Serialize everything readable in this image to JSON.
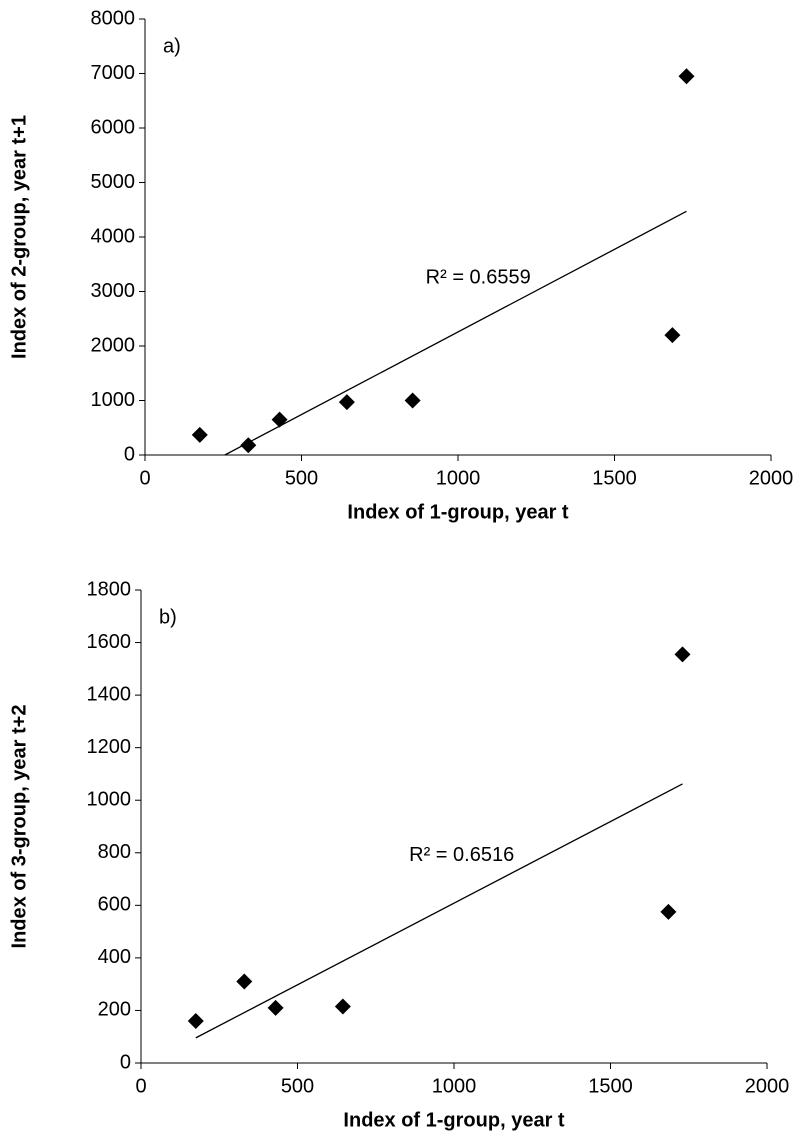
{
  "chart_data": [
    {
      "type": "scatter",
      "panel_label": "a)",
      "x_label": "Index of 1-group, year t",
      "y_label": "Index of 2-group, year t+1",
      "series": [
        {
          "name": null,
          "color": "#000000",
          "x": [
            175,
            330,
            430,
            645,
            855,
            1730,
            1685
          ],
          "values": [
            370,
            180,
            650,
            970,
            1000,
            6950,
            2200
          ]
        }
      ],
      "trendline": true,
      "trendline_label": "R² = 0.6559",
      "xlim": [
        0,
        2000
      ],
      "xticks": [
        0,
        500,
        1000,
        1500,
        2000
      ],
      "ylim": [
        0,
        8000
      ],
      "yticks": [
        0,
        1000,
        2000,
        3000,
        4000,
        5000,
        6000,
        7000,
        8000
      ]
    },
    {
      "type": "scatter",
      "panel_label": "b)",
      "x_label": "Index of 1-group, year t",
      "y_label": "Index of 3-group, year t+2",
      "series": [
        {
          "name": null,
          "color": "#000000",
          "x": [
            175,
            330,
            430,
            645,
            1685,
            1730
          ],
          "values": [
            160,
            310,
            210,
            215,
            575,
            1555
          ]
        }
      ],
      "trendline": true,
      "trendline_label": "R² = 0.6516",
      "xlim": [
        0,
        2000
      ],
      "xticks": [
        0,
        500,
        1000,
        1500,
        2000
      ],
      "ylim": [
        0,
        1800
      ],
      "yticks": [
        0,
        200,
        400,
        600,
        800,
        1000,
        1200,
        1400,
        1600,
        1800
      ]
    }
  ]
}
